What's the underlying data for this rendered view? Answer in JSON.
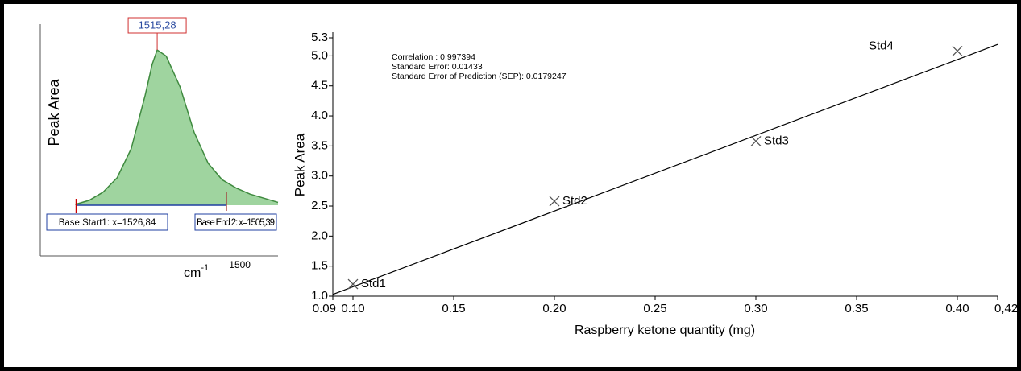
{
  "chart_data": [
    {
      "type": "area",
      "ylabel": "Peak Area",
      "xlabel_unit": "cm",
      "xlabel_exponent": "-1",
      "xlim": [
        1532,
        1498
      ],
      "ylim": [
        0,
        1
      ],
      "xticks": [
        1500
      ],
      "x": [
        1527,
        1525,
        1523,
        1521,
        1519,
        1517,
        1516,
        1515.28,
        1514,
        1512,
        1510,
        1508,
        1506,
        1504,
        1502,
        1500,
        1498
      ],
      "values": [
        0.25,
        0.27,
        0.31,
        0.38,
        0.52,
        0.78,
        0.93,
        1.0,
        0.97,
        0.82,
        0.6,
        0.45,
        0.37,
        0.33,
        0.3,
        0.28,
        0.26
      ],
      "color": "#9fd49f",
      "peak": {
        "value": 1515.28,
        "label": "1515,28"
      },
      "base_start": {
        "value": 1526.84,
        "label": "Base Start1: x=1526,84"
      },
      "base_end": {
        "value": 1505.39,
        "label": "Base End 2: x=1505,39"
      }
    },
    {
      "type": "scatter",
      "xlabel": "Raspberry ketone quantity (mg)",
      "ylabel": "Peak Area",
      "annotations": [
        "Correlation : 0.997394",
        "Standard Error: 0.01433",
        "Standard Error of Prediction (SEP): 0.0179247"
      ],
      "xlim": [
        0.09,
        0.42
      ],
      "ylim": [
        1.0,
        5.3
      ],
      "xticks": [
        {
          "value": 0.09,
          "label": "0.09"
        },
        {
          "value": 0.1,
          "label": "0.10"
        },
        0.15,
        {
          "value": 0.2,
          "label": "0.20"
        },
        0.25,
        {
          "value": 0.3,
          "label": "0.30"
        },
        0.35,
        {
          "value": 0.4,
          "label": "0.40"
        },
        {
          "value": 0.42,
          "label": "0,42"
        }
      ],
      "yticks": [
        {
          "value": 1.0,
          "label": "1.0"
        },
        1.5,
        {
          "value": 2.0,
          "label": "2.0"
        },
        2.5,
        {
          "value": 3.0,
          "label": "3.0"
        },
        3.5,
        {
          "value": 4.0,
          "label": "4.0"
        },
        4.5,
        {
          "value": 5.0,
          "label": "5.0"
        },
        5.3
      ],
      "point_labels": [
        "Std1",
        "Std2",
        "Std3",
        "Std4"
      ],
      "x": [
        0.1,
        0.2,
        0.3,
        0.4
      ],
      "values": [
        1.2,
        2.58,
        3.58,
        5.08
      ],
      "color": "#555555",
      "fit_line": {
        "x": [
          0.09,
          0.42
        ],
        "values": [
          1.03,
          5.19
        ]
      }
    }
  ]
}
